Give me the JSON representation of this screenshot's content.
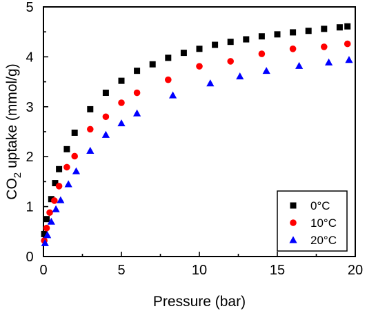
{
  "chart_data": {
    "type": "scatter",
    "xlabel": "Pressure (bar)",
    "ylabel": {
      "prefix": "CO",
      "subscript": "2",
      "suffix": " uptake (mmol/g)"
    },
    "xlim": [
      0,
      20
    ],
    "ylim": [
      0,
      5
    ],
    "x_ticks": [
      0,
      5,
      10,
      15,
      20
    ],
    "y_ticks": [
      0,
      1,
      2,
      3,
      4,
      5
    ],
    "x_tick_labels": [
      "0",
      "5",
      "10",
      "15",
      "20"
    ],
    "y_tick_labels": [
      "0",
      "1",
      "2",
      "3",
      "4",
      "5"
    ],
    "grid": false,
    "legend_position": "bottom-right",
    "series": [
      {
        "name": "0°C",
        "marker": "square",
        "color": "#000000",
        "points": [
          [
            0.05,
            0.45
          ],
          [
            0.2,
            0.75
          ],
          [
            0.5,
            1.15
          ],
          [
            0.75,
            1.47
          ],
          [
            1.0,
            1.75
          ],
          [
            1.5,
            2.15
          ],
          [
            2.0,
            2.48
          ],
          [
            3.0,
            2.95
          ],
          [
            4.0,
            3.28
          ],
          [
            5.0,
            3.52
          ],
          [
            6.0,
            3.72
          ],
          [
            7.0,
            3.85
          ],
          [
            8.0,
            3.98
          ],
          [
            9.0,
            4.08
          ],
          [
            10.0,
            4.16
          ],
          [
            11.0,
            4.24
          ],
          [
            12.0,
            4.3
          ],
          [
            13.0,
            4.35
          ],
          [
            14.0,
            4.41
          ],
          [
            15.0,
            4.45
          ],
          [
            16.0,
            4.49
          ],
          [
            17.0,
            4.52
          ],
          [
            18.0,
            4.56
          ],
          [
            19.0,
            4.59
          ],
          [
            19.5,
            4.61
          ]
        ]
      },
      {
        "name": "10°C",
        "marker": "circle",
        "color": "#ff0000",
        "points": [
          [
            0.05,
            0.32
          ],
          [
            0.2,
            0.57
          ],
          [
            0.4,
            0.88
          ],
          [
            0.7,
            1.12
          ],
          [
            1.0,
            1.41
          ],
          [
            1.5,
            1.79
          ],
          [
            2.0,
            2.01
          ],
          [
            3.0,
            2.55
          ],
          [
            4.0,
            2.8
          ],
          [
            5.0,
            3.08
          ],
          [
            6.0,
            3.28
          ],
          [
            8.0,
            3.54
          ],
          [
            10.0,
            3.81
          ],
          [
            12.0,
            3.91
          ],
          [
            14.0,
            4.06
          ],
          [
            16.0,
            4.16
          ],
          [
            18.0,
            4.2
          ],
          [
            19.5,
            4.26
          ]
        ]
      },
      {
        "name": "20°C",
        "marker": "triangle",
        "color": "#0000ff",
        "points": [
          [
            0.1,
            0.27
          ],
          [
            0.25,
            0.43
          ],
          [
            0.5,
            0.7
          ],
          [
            0.8,
            0.95
          ],
          [
            1.1,
            1.13
          ],
          [
            1.6,
            1.45
          ],
          [
            2.1,
            1.71
          ],
          [
            3.0,
            2.12
          ],
          [
            4.0,
            2.44
          ],
          [
            5.0,
            2.67
          ],
          [
            6.0,
            2.87
          ],
          [
            8.3,
            3.23
          ],
          [
            10.7,
            3.47
          ],
          [
            12.6,
            3.61
          ],
          [
            14.3,
            3.72
          ],
          [
            16.4,
            3.82
          ],
          [
            18.3,
            3.89
          ],
          [
            19.6,
            3.94
          ]
        ]
      }
    ]
  }
}
